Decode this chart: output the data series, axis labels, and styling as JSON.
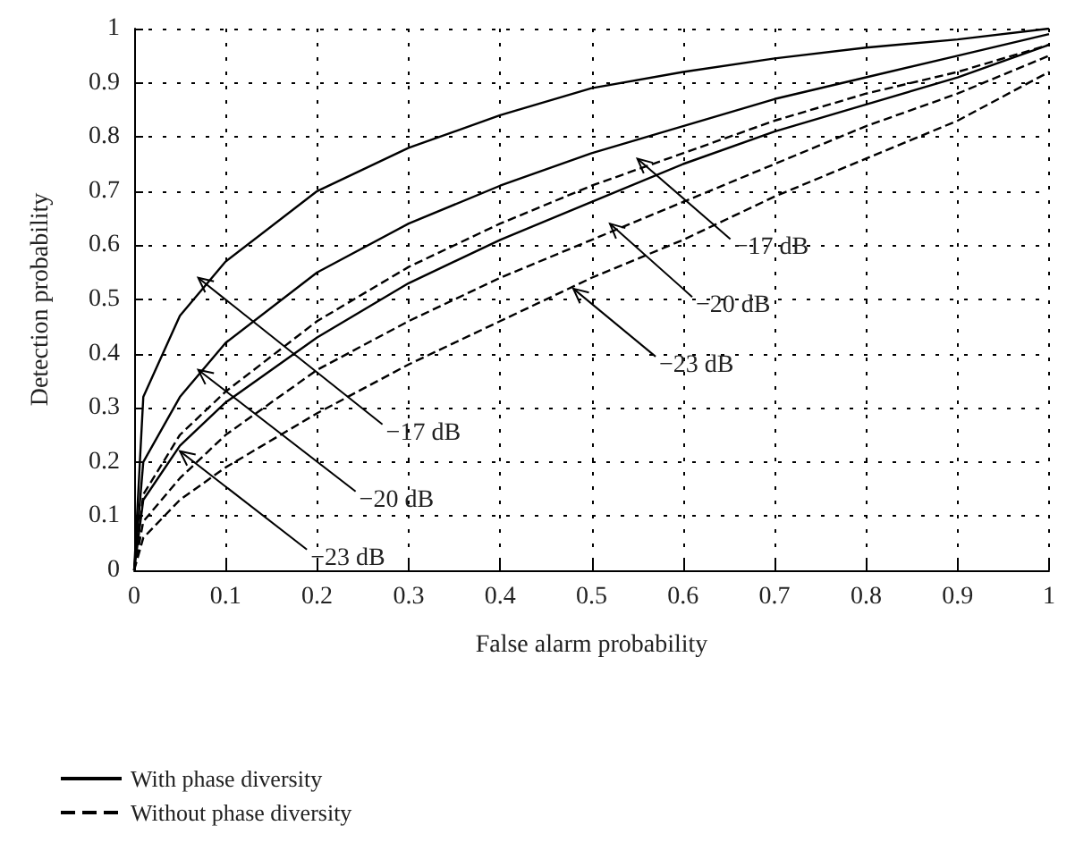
{
  "chart_data": {
    "type": "line",
    "xlabel": "False alarm probability",
    "ylabel": "Detection probability",
    "x": [
      0,
      0.01,
      0.05,
      0.1,
      0.2,
      0.3,
      0.4,
      0.5,
      0.6,
      0.7,
      0.8,
      0.9,
      1
    ],
    "series": [
      {
        "name": "With phase diversity",
        "color": "#000000",
        "line_style": "solid",
        "values": [
          0,
          0.32,
          0.47,
          0.57,
          0.7,
          0.78,
          0.84,
          0.89,
          0.92,
          0.945,
          0.965,
          0.98,
          1
        ]
      },
      {
        "color": "#000000",
        "line_style": "solid",
        "values": [
          0,
          0.2,
          0.32,
          0.42,
          0.55,
          0.64,
          0.71,
          0.77,
          0.82,
          0.87,
          0.91,
          0.95,
          0.99
        ]
      },
      {
        "color": "#000000",
        "line_style": "solid",
        "values": [
          0,
          0.13,
          0.23,
          0.31,
          0.43,
          0.53,
          0.61,
          0.68,
          0.75,
          0.81,
          0.86,
          0.91,
          0.97
        ]
      },
      {
        "name": "Without phase diversity",
        "color": "#000000",
        "line_style": "dashed",
        "values": [
          0,
          0.14,
          0.25,
          0.33,
          0.46,
          0.56,
          0.64,
          0.71,
          0.77,
          0.83,
          0.88,
          0.92,
          0.97
        ]
      },
      {
        "color": "#000000",
        "line_style": "dashed",
        "values": [
          0,
          0.09,
          0.17,
          0.25,
          0.37,
          0.46,
          0.54,
          0.61,
          0.68,
          0.75,
          0.82,
          0.88,
          0.95
        ]
      },
      {
        "color": "#000000",
        "line_style": "dashed",
        "values": [
          0,
          0.06,
          0.13,
          0.19,
          0.29,
          0.38,
          0.46,
          0.54,
          0.61,
          0.69,
          0.76,
          0.83,
          0.92
        ]
      }
    ],
    "xlim": [
      0,
      1
    ],
    "ylim": [
      0,
      1
    ],
    "xticks": [
      0,
      0.1,
      0.2,
      0.3,
      0.4,
      0.5,
      0.6,
      0.7,
      0.8,
      0.9,
      1
    ],
    "yticks": [
      0,
      0.1,
      0.2,
      0.3,
      0.4,
      0.5,
      0.6,
      0.7,
      0.8,
      0.9,
      1
    ],
    "grid": true,
    "marker": "none",
    "legend": "bottom left",
    "annotations": [
      {
        "text": "−17 dB",
        "x": 0.07,
        "y": 0.54
      },
      {
        "text": "−20 dB",
        "x": 0.07,
        "y": 0.37
      },
      {
        "text": "−23 dB",
        "x": 0.05,
        "y": 0.22
      },
      {
        "text": "−17 dB",
        "x": 0.55,
        "y": 0.76
      },
      {
        "text": "−20 dB",
        "x": 0.52,
        "y": 0.64
      },
      {
        "text": "−23 dB",
        "x": 0.48,
        "y": 0.52
      }
    ]
  }
}
